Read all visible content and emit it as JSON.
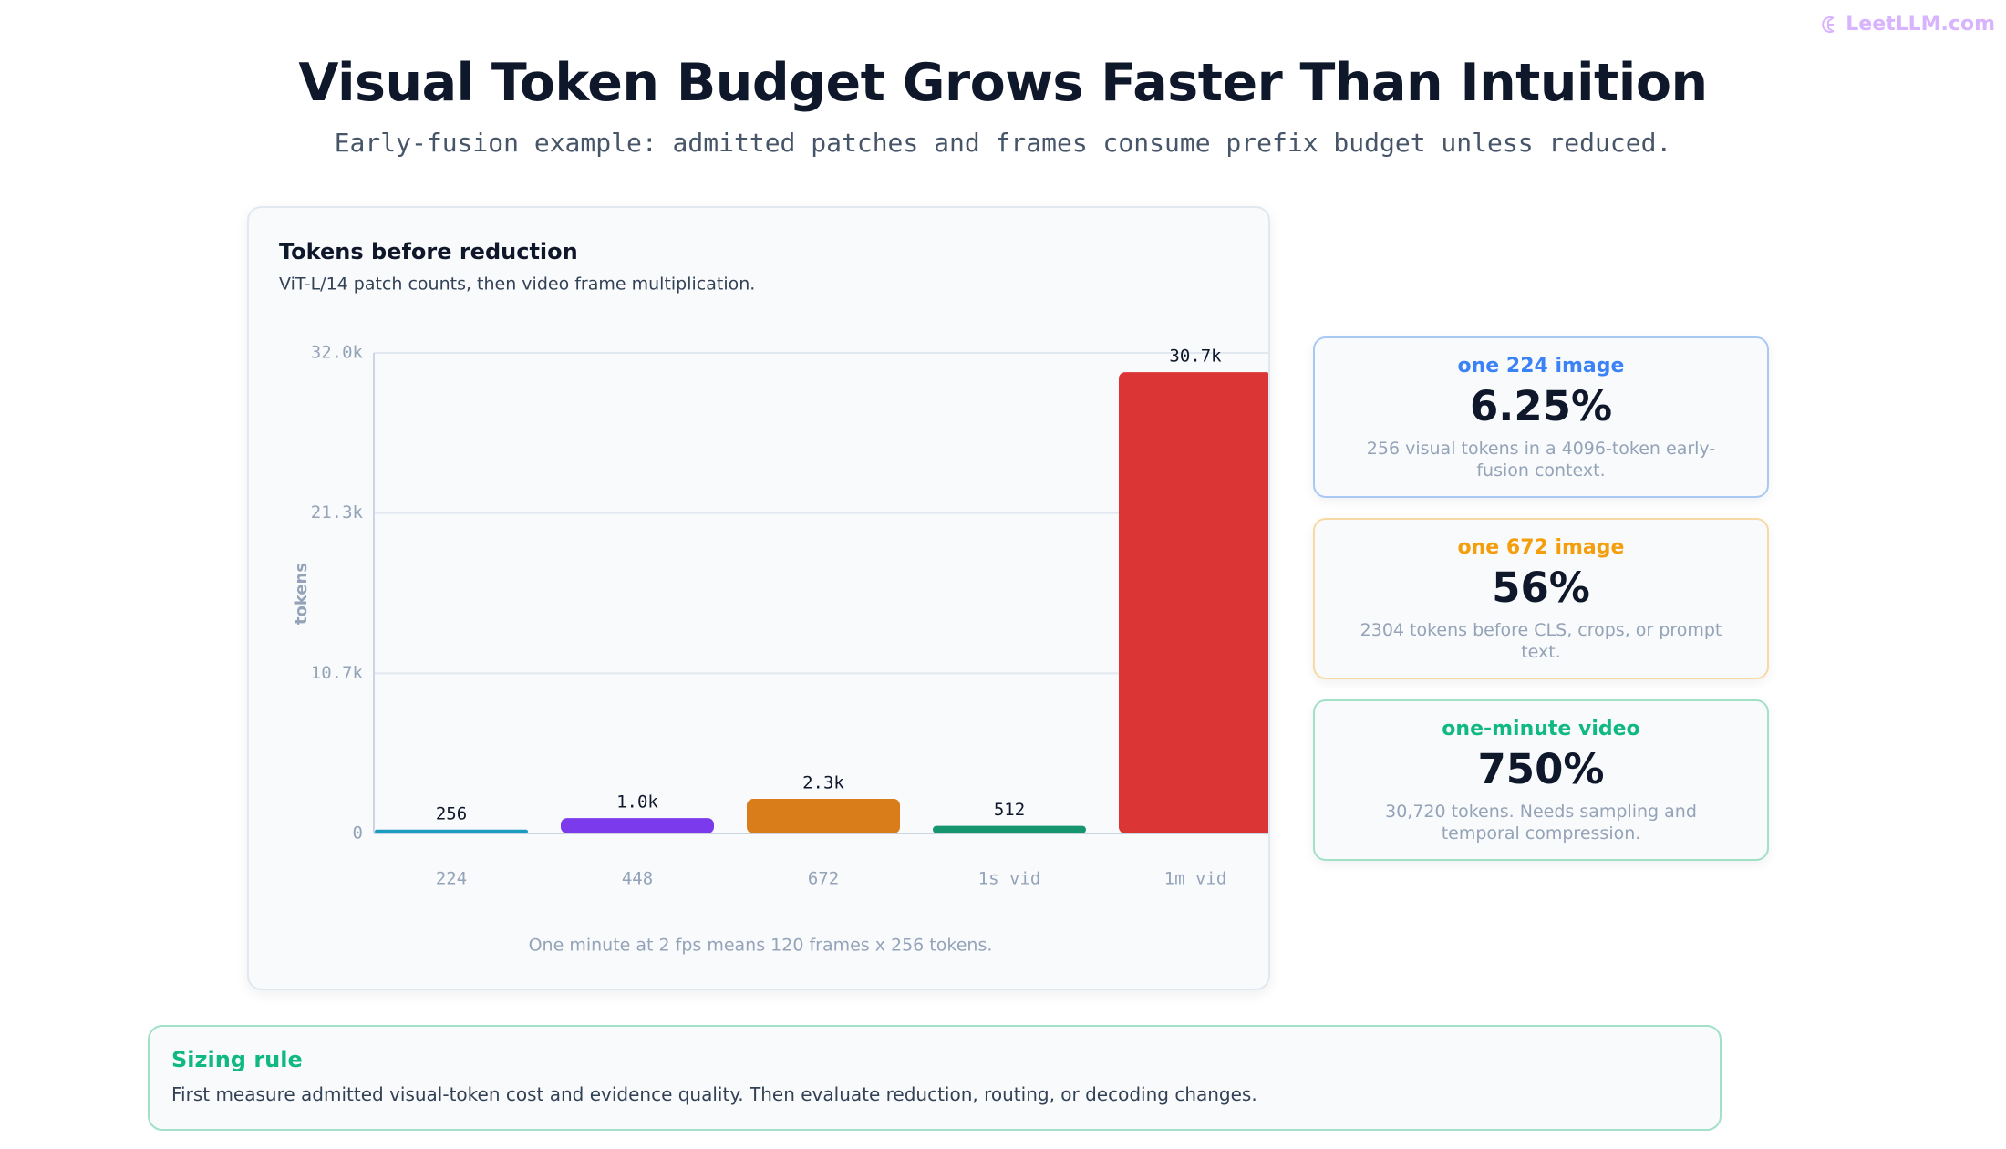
{
  "brand": "LeetLLM.com",
  "header": {
    "title": "Visual Token Budget Grows Faster Than Intuition",
    "subtitle": "Early-fusion example: admitted patches and frames consume prefix budget unless reduced."
  },
  "chart_data": {
    "type": "bar",
    "title": "Tokens before reduction",
    "subtitle": "ViT-L/14 patch counts, then video frame multiplication.",
    "y_label": "tokens",
    "categories": [
      "224",
      "448",
      "672",
      "1s vid",
      "1m vid"
    ],
    "values": [
      256,
      1024,
      2304,
      512,
      30720
    ],
    "value_labels": [
      "256",
      "1.0k",
      "2.3k",
      "512",
      "30.7k"
    ],
    "colors": [
      "#1b9cc0",
      "#7c3aed",
      "#d97c1a",
      "#16956f",
      "#dc3535"
    ],
    "ylim": [
      0,
      32000
    ],
    "yticks": [
      0,
      {
        "value": 10666.67,
        "label": "10.7k"
      },
      {
        "value": 21333.33,
        "label": "21.3k"
      },
      {
        "value": 32000,
        "label": "32.0k"
      }
    ],
    "grid": true,
    "note": "One minute at 2 fps means 120 frames x 256 tokens."
  },
  "stats": [
    {
      "title": "one 224 image",
      "value": "6.25%",
      "description": "256 visual tokens in a 4096-token early-fusion context.",
      "color": "#3b82f6",
      "border": "#a9c9f5"
    },
    {
      "title": "one 672 image",
      "value": "56%",
      "description": "2304 tokens before CLS, crops, or prompt text.",
      "color": "#f59e0b",
      "border": "#f8d9a3"
    },
    {
      "title": "one-minute video",
      "value": "750%",
      "description": "30,720 tokens. Needs sampling and temporal compression.",
      "color": "#10b981",
      "border": "#a3e0c8"
    }
  ],
  "rule": {
    "title": "Sizing rule",
    "text": "First measure admitted visual-token cost and evidence quality. Then evaluate reduction, routing, or decoding changes."
  }
}
